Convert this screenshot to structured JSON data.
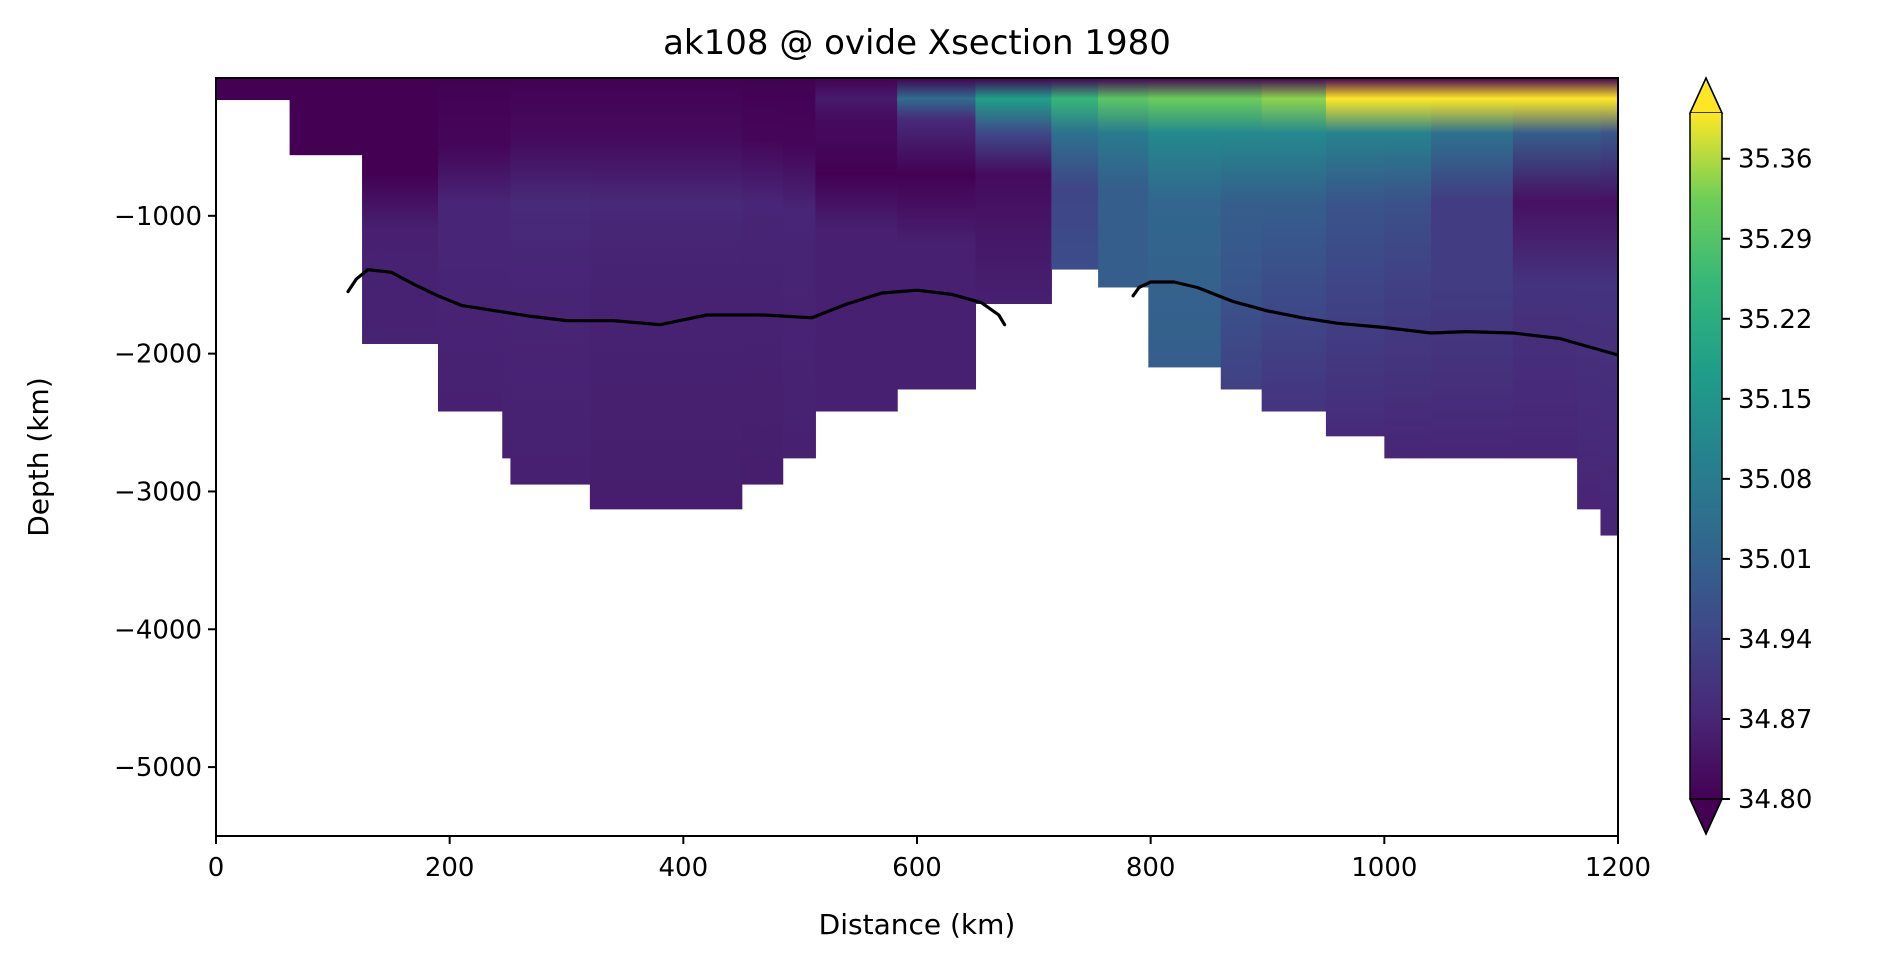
{
  "chart_data": {
    "type": "heatmap",
    "title": "ak108 @ ovide Xsection 1980",
    "xlabel": "Distance (km)",
    "ylabel": "Depth (km)",
    "xlim": [
      0,
      1200
    ],
    "ylim": [
      -5500,
      0
    ],
    "xticks": [
      0,
      200,
      400,
      600,
      800,
      1000,
      1200
    ],
    "xtick_labels": [
      "0",
      "200",
      "400",
      "600",
      "800",
      "1000",
      "1200"
    ],
    "yticks": [
      -1000,
      -2000,
      -3000,
      -4000,
      -5000
    ],
    "ytick_labels": [
      "−1000",
      "−2000",
      "−3000",
      "−4000",
      "−5000"
    ],
    "colorbar": {
      "vmin": 34.8,
      "vmax": 35.4,
      "extend": "both",
      "colormap": "viridis",
      "ticks": [
        34.8,
        34.87,
        34.94,
        35.01,
        35.08,
        35.15,
        35.22,
        35.29,
        35.36
      ],
      "tick_labels": [
        "34.80",
        "34.87",
        "34.94",
        "35.01",
        "35.08",
        "35.15",
        "35.22",
        "35.29",
        "35.36"
      ]
    },
    "columns": [
      {
        "x0": 0,
        "x1": 63,
        "bottom": -160,
        "profile": [
          [
            0,
            34.8
          ],
          [
            -160,
            34.8
          ]
        ]
      },
      {
        "x0": 63,
        "x1": 125,
        "bottom": -560,
        "profile": [
          [
            0,
            34.8
          ],
          [
            -560,
            34.8
          ]
        ]
      },
      {
        "x0": 125,
        "x1": 190,
        "bottom": -1930,
        "profile": [
          [
            0,
            34.8
          ],
          [
            -700,
            34.8
          ],
          [
            -1100,
            34.86
          ],
          [
            -1930,
            34.865
          ]
        ]
      },
      {
        "x0": 190,
        "x1": 245,
        "bottom": -2420,
        "profile": [
          [
            0,
            34.8
          ],
          [
            -500,
            34.81
          ],
          [
            -900,
            34.87
          ],
          [
            -1300,
            34.87
          ],
          [
            -2420,
            34.86
          ]
        ]
      },
      {
        "x0": 245,
        "x1": 252,
        "bottom": -2760,
        "profile": [
          [
            0,
            34.8
          ],
          [
            -500,
            34.81
          ],
          [
            -900,
            34.87
          ],
          [
            -1300,
            34.87
          ],
          [
            -2760,
            34.86
          ]
        ]
      },
      {
        "x0": 252,
        "x1": 320,
        "bottom": -2950,
        "profile": [
          [
            0,
            34.8
          ],
          [
            -450,
            34.82
          ],
          [
            -900,
            34.88
          ],
          [
            -1400,
            34.87
          ],
          [
            -2950,
            34.86
          ]
        ]
      },
      {
        "x0": 320,
        "x1": 450,
        "bottom": -3130,
        "profile": [
          [
            0,
            34.8
          ],
          [
            -450,
            34.82
          ],
          [
            -900,
            34.875
          ],
          [
            -1400,
            34.865
          ],
          [
            -3130,
            34.855
          ]
        ]
      },
      {
        "x0": 450,
        "x1": 485,
        "bottom": -2950,
        "profile": [
          [
            0,
            34.8
          ],
          [
            -450,
            34.81
          ],
          [
            -900,
            34.87
          ],
          [
            -1400,
            34.865
          ],
          [
            -2950,
            34.855
          ]
        ]
      },
      {
        "x0": 485,
        "x1": 513,
        "bottom": -2760,
        "profile": [
          [
            0,
            34.8
          ],
          [
            -500,
            34.81
          ],
          [
            -950,
            34.87
          ],
          [
            -2760,
            34.86
          ]
        ]
      },
      {
        "x0": 513,
        "x1": 583,
        "bottom": -2420,
        "profile": [
          [
            0,
            34.8
          ],
          [
            -150,
            34.85
          ],
          [
            -300,
            34.82
          ],
          [
            -700,
            34.8
          ],
          [
            -1100,
            34.86
          ],
          [
            -2420,
            34.86
          ]
        ]
      },
      {
        "x0": 583,
        "x1": 650,
        "bottom": -2260,
        "profile": [
          [
            0,
            34.8
          ],
          [
            -150,
            35.04
          ],
          [
            -300,
            34.88
          ],
          [
            -700,
            34.8
          ],
          [
            -1200,
            34.86
          ],
          [
            -2260,
            34.86
          ]
        ]
      },
      {
        "x0": 650,
        "x1": 715,
        "bottom": -1640,
        "profile": [
          [
            0,
            34.8
          ],
          [
            -150,
            35.18
          ],
          [
            -400,
            34.95
          ],
          [
            -700,
            34.82
          ],
          [
            -1100,
            34.84
          ],
          [
            -1640,
            34.86
          ]
        ]
      },
      {
        "x0": 715,
        "x1": 755,
        "bottom": -1390,
        "profile": [
          [
            0,
            34.8
          ],
          [
            -150,
            35.25
          ],
          [
            -400,
            35.05
          ],
          [
            -800,
            34.94
          ],
          [
            -1390,
            34.96
          ]
        ]
      },
      {
        "x0": 755,
        "x1": 798,
        "bottom": -1520,
        "profile": [
          [
            0,
            34.8
          ],
          [
            -150,
            35.3
          ],
          [
            -400,
            35.08
          ],
          [
            -800,
            35.0
          ],
          [
            -1520,
            35.0
          ]
        ]
      },
      {
        "x0": 798,
        "x1": 860,
        "bottom": -2100,
        "profile": [
          [
            0,
            34.8
          ],
          [
            -150,
            35.32
          ],
          [
            -400,
            35.12
          ],
          [
            -900,
            35.02
          ],
          [
            -2100,
            35.0
          ]
        ]
      },
      {
        "x0": 860,
        "x1": 895,
        "bottom": -2260,
        "profile": [
          [
            0,
            34.8
          ],
          [
            -150,
            35.32
          ],
          [
            -400,
            35.12
          ],
          [
            -900,
            35.0
          ],
          [
            -1500,
            34.98
          ],
          [
            -2260,
            34.93
          ]
        ]
      },
      {
        "x0": 895,
        "x1": 950,
        "bottom": -2420,
        "profile": [
          [
            0,
            34.8
          ],
          [
            -150,
            35.34
          ],
          [
            -400,
            35.12
          ],
          [
            -900,
            35.0
          ],
          [
            -1500,
            34.96
          ],
          [
            -2420,
            34.9
          ]
        ]
      },
      {
        "x0": 950,
        "x1": 1000,
        "bottom": -2600,
        "profile": [
          [
            0,
            34.8
          ],
          [
            -150,
            35.4
          ],
          [
            -400,
            35.1
          ],
          [
            -900,
            34.98
          ],
          [
            -1500,
            34.94
          ],
          [
            -2600,
            34.88
          ]
        ]
      },
      {
        "x0": 1000,
        "x1": 1040,
        "bottom": -2760,
        "profile": [
          [
            0,
            34.8
          ],
          [
            -150,
            35.4
          ],
          [
            -400,
            35.1
          ],
          [
            -900,
            34.97
          ],
          [
            -1500,
            34.93
          ],
          [
            -2760,
            34.87
          ]
        ]
      },
      {
        "x0": 1040,
        "x1": 1110,
        "bottom": -2760,
        "profile": [
          [
            0,
            34.8
          ],
          [
            -150,
            35.4
          ],
          [
            -400,
            35.05
          ],
          [
            -900,
            34.92
          ],
          [
            -1500,
            34.92
          ],
          [
            -2760,
            34.87
          ]
        ]
      },
      {
        "x0": 1110,
        "x1": 1165,
        "bottom": -2760,
        "profile": [
          [
            0,
            34.8
          ],
          [
            -150,
            35.4
          ],
          [
            -400,
            35.0
          ],
          [
            -900,
            34.83
          ],
          [
            -1500,
            34.9
          ],
          [
            -2760,
            34.87
          ]
        ]
      },
      {
        "x0": 1165,
        "x1": 1185,
        "bottom": -3130,
        "profile": [
          [
            0,
            34.8
          ],
          [
            -150,
            35.4
          ],
          [
            -400,
            35.0
          ],
          [
            -900,
            34.83
          ],
          [
            -1500,
            34.9
          ],
          [
            -3130,
            34.87
          ]
        ]
      },
      {
        "x0": 1185,
        "x1": 1200,
        "bottom": -3320,
        "profile": [
          [
            0,
            34.8
          ],
          [
            -150,
            35.4
          ],
          [
            -400,
            34.98
          ],
          [
            -900,
            34.83
          ],
          [
            -1500,
            34.9
          ],
          [
            -3320,
            34.87
          ]
        ]
      }
    ],
    "contour_line": {
      "segments": [
        [
          [
            113,
            -1550
          ],
          [
            120,
            -1460
          ],
          [
            130,
            -1390
          ],
          [
            150,
            -1410
          ],
          [
            170,
            -1500
          ],
          [
            190,
            -1580
          ],
          [
            210,
            -1650
          ],
          [
            240,
            -1690
          ],
          [
            270,
            -1730
          ],
          [
            300,
            -1760
          ],
          [
            340,
            -1760
          ],
          [
            380,
            -1790
          ],
          [
            420,
            -1720
          ],
          [
            470,
            -1720
          ],
          [
            510,
            -1740
          ],
          [
            540,
            -1640
          ],
          [
            570,
            -1560
          ],
          [
            585,
            -1550
          ],
          [
            600,
            -1540
          ],
          [
            630,
            -1570
          ],
          [
            655,
            -1630
          ],
          [
            670,
            -1720
          ],
          [
            675,
            -1790
          ]
        ],
        [
          [
            785,
            -1580
          ],
          [
            790,
            -1520
          ],
          [
            800,
            -1480
          ],
          [
            820,
            -1480
          ],
          [
            840,
            -1520
          ],
          [
            870,
            -1620
          ],
          [
            900,
            -1690
          ],
          [
            930,
            -1740
          ],
          [
            960,
            -1780
          ],
          [
            1000,
            -1810
          ],
          [
            1040,
            -1850
          ],
          [
            1070,
            -1840
          ],
          [
            1110,
            -1850
          ],
          [
            1150,
            -1890
          ],
          [
            1200,
            -2010
          ]
        ]
      ]
    }
  }
}
